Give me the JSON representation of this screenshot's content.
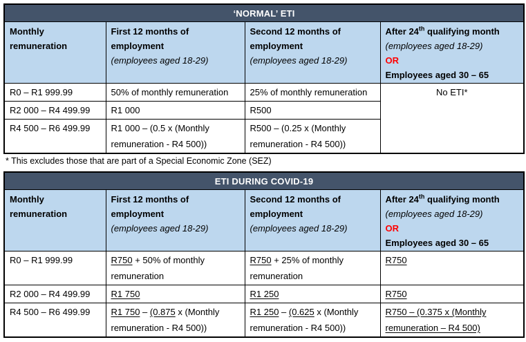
{
  "colors": {
    "title_bar_bg": "#44546A",
    "title_bar_fg": "#FFFFFF",
    "header_row_bg": "#BDD7EE",
    "border": "#000000",
    "or_red": "#FF0000"
  },
  "normal_table": {
    "title": "‘NORMAL’ ETI",
    "header": [
      [
        {
          "style": "b",
          "segs": [
            {
              "t": "Monthly remuneration"
            }
          ]
        }
      ],
      [
        {
          "style": "b",
          "segs": [
            {
              "t": "First 12 months of employment"
            }
          ]
        },
        {
          "style": "i",
          "segs": [
            {
              "t": "(employees aged 18-29)"
            }
          ]
        }
      ],
      [
        {
          "style": "b",
          "segs": [
            {
              "t": "Second 12 months of employment"
            }
          ]
        },
        {
          "style": "i",
          "segs": [
            {
              "t": "(employees aged 18-29)"
            }
          ]
        }
      ],
      [
        {
          "style": "b",
          "segs": [
            {
              "t": "After 24"
            },
            {
              "t": "th",
              "sup": true
            },
            {
              "t": " qualifying month"
            }
          ]
        },
        {
          "style": "i",
          "segs": [
            {
              "t": "(employees aged 18-29)"
            }
          ]
        },
        {
          "style": "br",
          "segs": [
            {
              "t": "OR"
            }
          ]
        },
        {
          "style": "b",
          "segs": [
            {
              "t": "Employees aged 30 – 65"
            }
          ]
        }
      ]
    ],
    "rows": [
      {
        "range": "R0 – R1 999.99",
        "first12": "50% of monthly remuneration",
        "second12": "25% of monthly remuneration"
      },
      {
        "range": "R2 000 – R4 499.99",
        "first12": "R1 000",
        "second12": "R500"
      },
      {
        "range": "R4 500 – R6 499.99",
        "first12": "R1 000 – (0.5 x (Monthly remuneration - R4 500))",
        "second12": "R500 – (0.25 x (Monthly remuneration - R4 500))"
      }
    ],
    "no_eti": "No ETI*",
    "footnote": "* This excludes those that are part of a Special Economic Zone (SEZ)"
  },
  "covid_table": {
    "title": "ETI DURING COVID-19",
    "header": [
      [
        {
          "style": "b",
          "segs": [
            {
              "t": "Monthly remuneration"
            }
          ]
        }
      ],
      [
        {
          "style": "b",
          "segs": [
            {
              "t": "First 12 months of employment"
            }
          ]
        },
        {
          "style": "i",
          "segs": [
            {
              "t": "(employees aged 18-29)"
            }
          ]
        }
      ],
      [
        {
          "style": "b",
          "segs": [
            {
              "t": "Second 12 months of employment"
            }
          ]
        },
        {
          "style": "i",
          "segs": [
            {
              "t": "(employees aged 18-29)"
            }
          ]
        }
      ],
      [
        {
          "style": "b",
          "segs": [
            {
              "t": "After 24"
            },
            {
              "t": "th",
              "sup": true
            },
            {
              "t": " qualifying month"
            }
          ]
        },
        {
          "style": "i",
          "segs": [
            {
              "t": "(employees aged 18-29)"
            }
          ]
        },
        {
          "style": "br",
          "segs": [
            {
              "t": "OR"
            }
          ]
        },
        {
          "style": "b",
          "segs": [
            {
              "t": "Employees aged 30 – 65"
            }
          ]
        }
      ]
    ],
    "rows": [
      {
        "range": "R0 – R1 999.99",
        "first12": [
          {
            "segs": [
              {
                "t": "R750",
                "u": true
              },
              {
                "t": " + 50% of monthly remuneration"
              }
            ]
          }
        ],
        "second12": [
          {
            "segs": [
              {
                "t": "R750",
                "u": true
              },
              {
                "t": " + 25% of monthly remuneration"
              }
            ]
          }
        ],
        "after24": [
          {
            "segs": [
              {
                "t": "R750",
                "u": true
              }
            ]
          }
        ]
      },
      {
        "range": "R2 000 – R4 499.99",
        "first12": [
          {
            "segs": [
              {
                "t": "R1 750",
                "u": true
              }
            ]
          }
        ],
        "second12": [
          {
            "segs": [
              {
                "t": "R1 250",
                "u": true
              }
            ]
          }
        ],
        "after24": [
          {
            "segs": [
              {
                "t": "R750",
                "u": true
              }
            ]
          }
        ]
      },
      {
        "range": "R4 500 – R6 499.99",
        "first12": [
          {
            "segs": [
              {
                "t": "R1 750",
                "u": true
              },
              {
                "t": " – "
              },
              {
                "t": "(0.875",
                "u": true
              },
              {
                "t": " x (Monthly remuneration - R4 500))"
              }
            ]
          }
        ],
        "second12": [
          {
            "segs": [
              {
                "t": "R1 250",
                "u": true
              },
              {
                "t": " – "
              },
              {
                "t": "(0.625",
                "u": true
              },
              {
                "t": " x (Monthly remuneration - R4 500))"
              }
            ]
          }
        ],
        "after24": [
          {
            "segs": [
              {
                "t": "R750 – (0.375 x (Monthly remuneration – R4 500)",
                "u": true
              }
            ]
          }
        ]
      }
    ]
  }
}
